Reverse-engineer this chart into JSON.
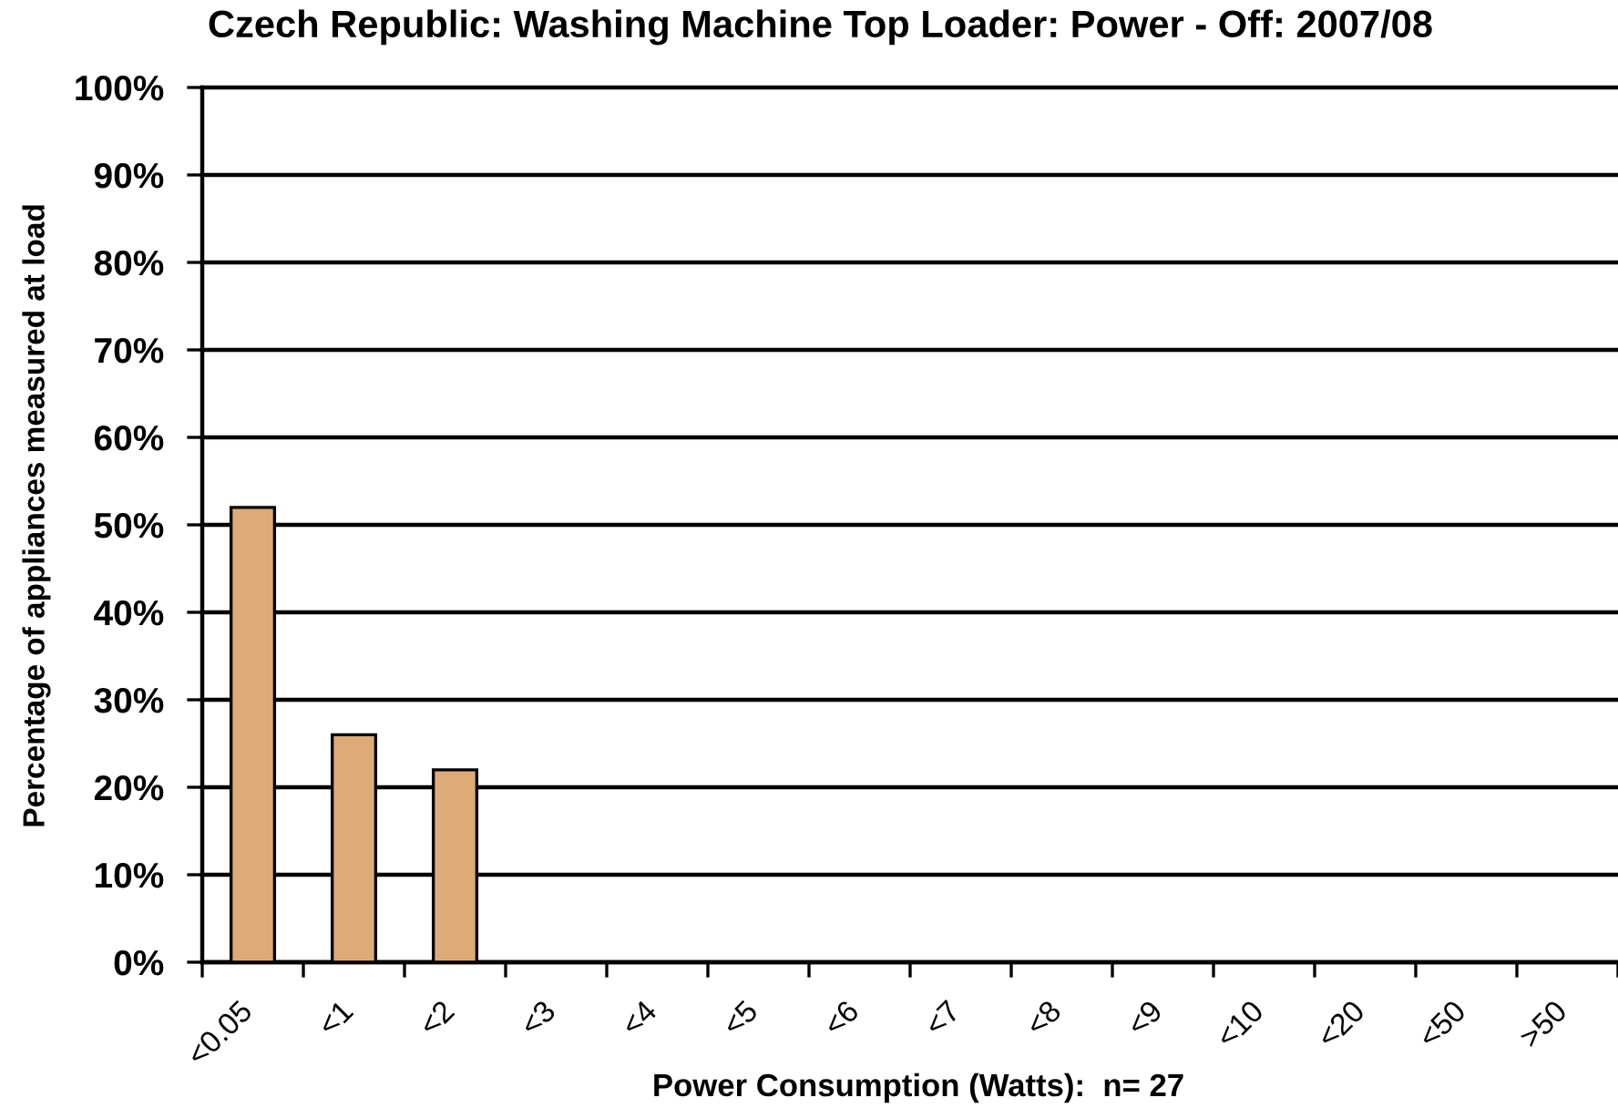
{
  "chart_data": {
    "type": "bar",
    "title": "Czech Republic: Washing Machine Top Loader: Power - Off: 2007/08",
    "xlabel": "Power Consumption (Watts):  n= 27",
    "ylabel": "Percentage of appliances measured at load",
    "categories": [
      "<0.05",
      "<1",
      "<2",
      "<3",
      "<4",
      "<5",
      "<6",
      "<7",
      "<8",
      "<9",
      "<10",
      "<20",
      "<50",
      ">50"
    ],
    "values": [
      52,
      26,
      22,
      0,
      0,
      0,
      0,
      0,
      0,
      0,
      0,
      0,
      0,
      0
    ],
    "color": "#ddaa78",
    "ylim": [
      0,
      100
    ],
    "yticks": [
      {
        "value": 0,
        "label": "0%"
      },
      {
        "value": 10,
        "label": "10%"
      },
      {
        "value": 20,
        "label": "20%"
      },
      {
        "value": 30,
        "label": "30%"
      },
      {
        "value": 40,
        "label": "40%"
      },
      {
        "value": 50,
        "label": "50%"
      },
      {
        "value": 60,
        "label": "60%"
      },
      {
        "value": 70,
        "label": "70%"
      },
      {
        "value": 80,
        "label": "80%"
      },
      {
        "value": 90,
        "label": "90%"
      },
      {
        "value": 100,
        "label": "100%"
      }
    ],
    "grid": "y",
    "legend": false
  }
}
